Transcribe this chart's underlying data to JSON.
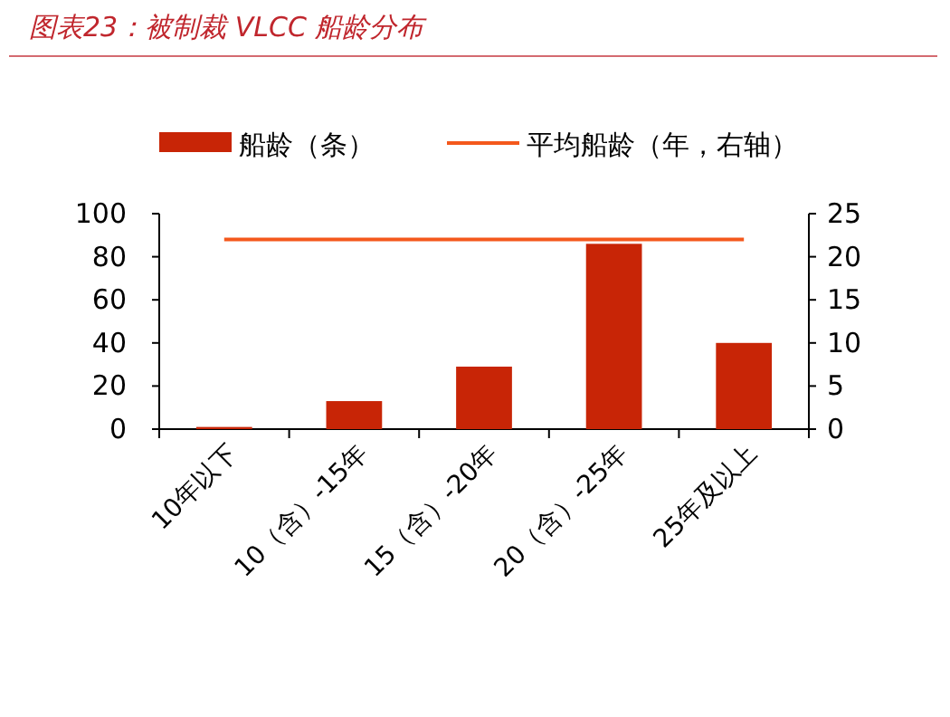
{
  "chart_data": {
    "type": "bar",
    "title": "图表23：被制裁 VLCC 船龄分布",
    "categories": [
      "10年以下",
      "10（含）-15年",
      "15（含）-20年",
      "20（含）-25年",
      "25年及以上"
    ],
    "series": [
      {
        "name": "船龄（条）",
        "color": "#c82506",
        "values": [
          1,
          13,
          29,
          86,
          40
        ]
      },
      {
        "name": "平均船龄（年，右轴）",
        "type": "line",
        "axis": "y2",
        "color": "#f4581c",
        "values": [
          22,
          22,
          22,
          22,
          22
        ]
      }
    ],
    "ylim": [
      0,
      100
    ],
    "yticks": [
      0,
      20,
      40,
      60,
      80,
      100
    ],
    "y2lim": [
      0,
      25
    ],
    "y2ticks": [
      0,
      5,
      10,
      15,
      20,
      25
    ],
    "grid": false,
    "legend": "top",
    "marker": "none",
    "line_style": "solid"
  }
}
